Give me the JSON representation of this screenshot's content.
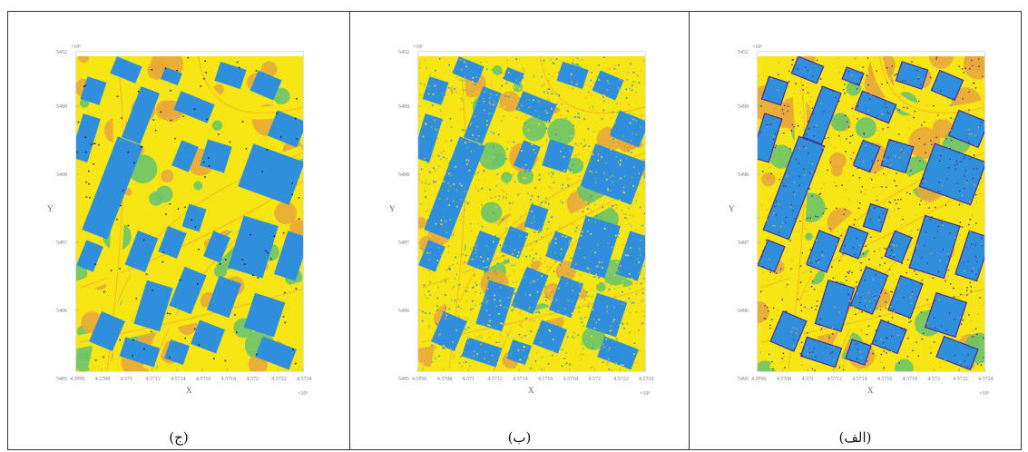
{
  "colors": {
    "ground": "#f8e614",
    "building": "#2f8fdc",
    "vegetation_low": "#6cc46a",
    "vegetation_high": "#e8a93a",
    "noise": "#4a2e8f",
    "road_edge": "#f2a52a",
    "frame": "#333333"
  },
  "panels": [
    {
      "caption": "(ج)",
      "y_tick_top": "5452",
      "y_exp": "×10⁶",
      "y_ticks": [
        "5499",
        "5498",
        "5497",
        "5496",
        "5495"
      ],
      "x_ticks": [
        "4.5706",
        "4.5708",
        "4.571",
        "4.5712",
        "4.5714",
        "4.5716",
        "4.5718",
        "4.572",
        "4.5722",
        "4.5724"
      ],
      "x_label": "X",
      "y_label": "Y",
      "x_exp": "×10⁵",
      "style": "clean"
    },
    {
      "caption": "(ب)",
      "y_tick_top": "5452",
      "y_exp": "×10⁶",
      "y_ticks": [
        "5499",
        "5498",
        "5497",
        "5496",
        "5495"
      ],
      "x_ticks": [
        "4.5706",
        "4.5708",
        "4.571",
        "4.5712",
        "4.5714",
        "4.5716",
        "4.5718",
        "4.572",
        "4.5722",
        "4.5724"
      ],
      "x_label": "X",
      "y_label": "Y",
      "x_exp": "×10⁵",
      "style": "speckled"
    },
    {
      "caption": "(الف)",
      "y_tick_top": "5452",
      "y_exp": "×10⁶",
      "y_ticks": [
        "5499",
        "5498",
        "5497",
        "5496",
        "5495"
      ],
      "x_ticks": [
        "4.5706",
        "4.5708",
        "4.571",
        "4.5712",
        "4.5714",
        "4.5716",
        "4.5718",
        "4.572",
        "4.5722",
        "4.5724"
      ],
      "x_label": "X",
      "y_label": "Y",
      "x_exp": "×10⁵",
      "style": "noisy"
    }
  ]
}
